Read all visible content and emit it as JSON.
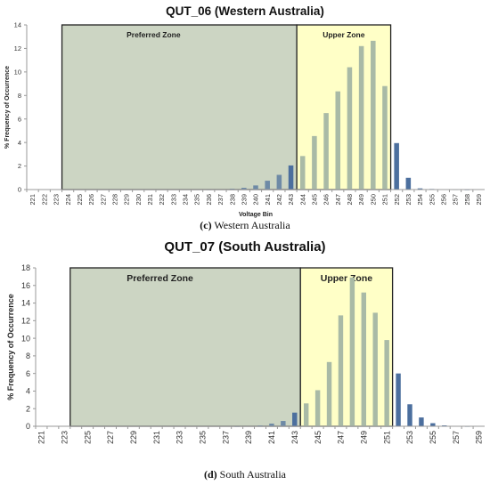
{
  "chart_data": [
    {
      "type": "bar",
      "title": "QUT_06 (Western Australia)",
      "caption_letter": "(c)",
      "caption_text": " Western Australia",
      "xlabel": "Voltage Bin",
      "ylabel": "% Frequency of Occurrence",
      "ylim": [
        0,
        14
      ],
      "yticks": [
        0,
        2,
        4,
        6,
        8,
        10,
        12,
        14
      ],
      "categories": [
        "221",
        "222",
        "223",
        "224",
        "225",
        "226",
        "227",
        "228",
        "229",
        "230",
        "231",
        "232",
        "233",
        "234",
        "235",
        "236",
        "237",
        "238",
        "239",
        "240",
        "241",
        "242",
        "243",
        "244",
        "245",
        "246",
        "247",
        "248",
        "249",
        "250",
        "251",
        "252",
        "253",
        "254",
        "255",
        "256",
        "257",
        "258",
        "259"
      ],
      "xtick_labels": [
        "221",
        "222",
        "223",
        "224",
        "225",
        "226",
        "227",
        "228",
        "229",
        "230",
        "231",
        "232",
        "233",
        "234",
        "235",
        "236",
        "237",
        "238",
        "239",
        "240",
        "241",
        "242",
        "243",
        "244",
        "245",
        "246",
        "247",
        "248",
        "249",
        "250",
        "251",
        "252",
        "253",
        "254",
        "255",
        "256",
        "257",
        "258",
        "259"
      ],
      "values": [
        0,
        0,
        0,
        0,
        0,
        0,
        0,
        0,
        0,
        0,
        0,
        0,
        0,
        0,
        0,
        0.02,
        0.03,
        0.06,
        0.15,
        0.35,
        0.75,
        1.25,
        2.05,
        2.85,
        4.55,
        6.5,
        8.35,
        10.4,
        12.2,
        12.65,
        8.8,
        3.95,
        1.0,
        0.1,
        0.05,
        0.03,
        0.02,
        0.01,
        0
      ],
      "grid": false,
      "zones": [
        {
          "label": "Preferred Zone",
          "from": "224",
          "to": "244",
          "color": "#ccd5c3"
        },
        {
          "label": "Upper Zone",
          "from": "244",
          "to": "252",
          "color": "#ffffc7"
        }
      ]
    },
    {
      "type": "bar",
      "title": "QUT_07 (South Australia)",
      "caption_letter": "(d)",
      "caption_text": " South Australia",
      "xlabel": "",
      "ylabel": "% Frequency of Occurrence",
      "ylim": [
        0,
        18
      ],
      "yticks": [
        0,
        2,
        4,
        6,
        8,
        10,
        12,
        14,
        16,
        18
      ],
      "categories": [
        "221",
        "222",
        "223",
        "224",
        "225",
        "226",
        "227",
        "228",
        "229",
        "230",
        "231",
        "232",
        "233",
        "234",
        "235",
        "236",
        "237",
        "238",
        "239",
        "240",
        "241",
        "242",
        "243",
        "244",
        "245",
        "246",
        "247",
        "248",
        "249",
        "250",
        "251",
        "252",
        "253",
        "254",
        "255",
        "256",
        "257",
        "258",
        "259"
      ],
      "xtick_labels": [
        "221",
        "",
        "223",
        "",
        "225",
        "",
        "227",
        "",
        "229",
        "",
        "231",
        "",
        "233",
        "",
        "235",
        "",
        "237",
        "",
        "239",
        "",
        "241",
        "",
        "243",
        "",
        "245",
        "",
        "247",
        "",
        "249",
        "",
        "251",
        "",
        "253",
        "",
        "255",
        "",
        "257",
        "",
        "259"
      ],
      "values": [
        0.05,
        0,
        0,
        0,
        0,
        0,
        0,
        0,
        0,
        0,
        0,
        0,
        0,
        0,
        0,
        0,
        0,
        0.02,
        0.05,
        0.1,
        0.3,
        0.6,
        1.55,
        2.6,
        4.1,
        7.3,
        12.6,
        16.9,
        15.2,
        12.9,
        9.8,
        6.0,
        2.5,
        1.0,
        0.35,
        0.1,
        0.05,
        0.02,
        0
      ],
      "grid": false,
      "zones": [
        {
          "label": "Preferred Zone",
          "from": "224",
          "to": "244",
          "color": "#ccd5c3"
        },
        {
          "label": "Upper Zone",
          "from": "244",
          "to": "252",
          "color": "#ffffc7"
        }
      ]
    }
  ]
}
